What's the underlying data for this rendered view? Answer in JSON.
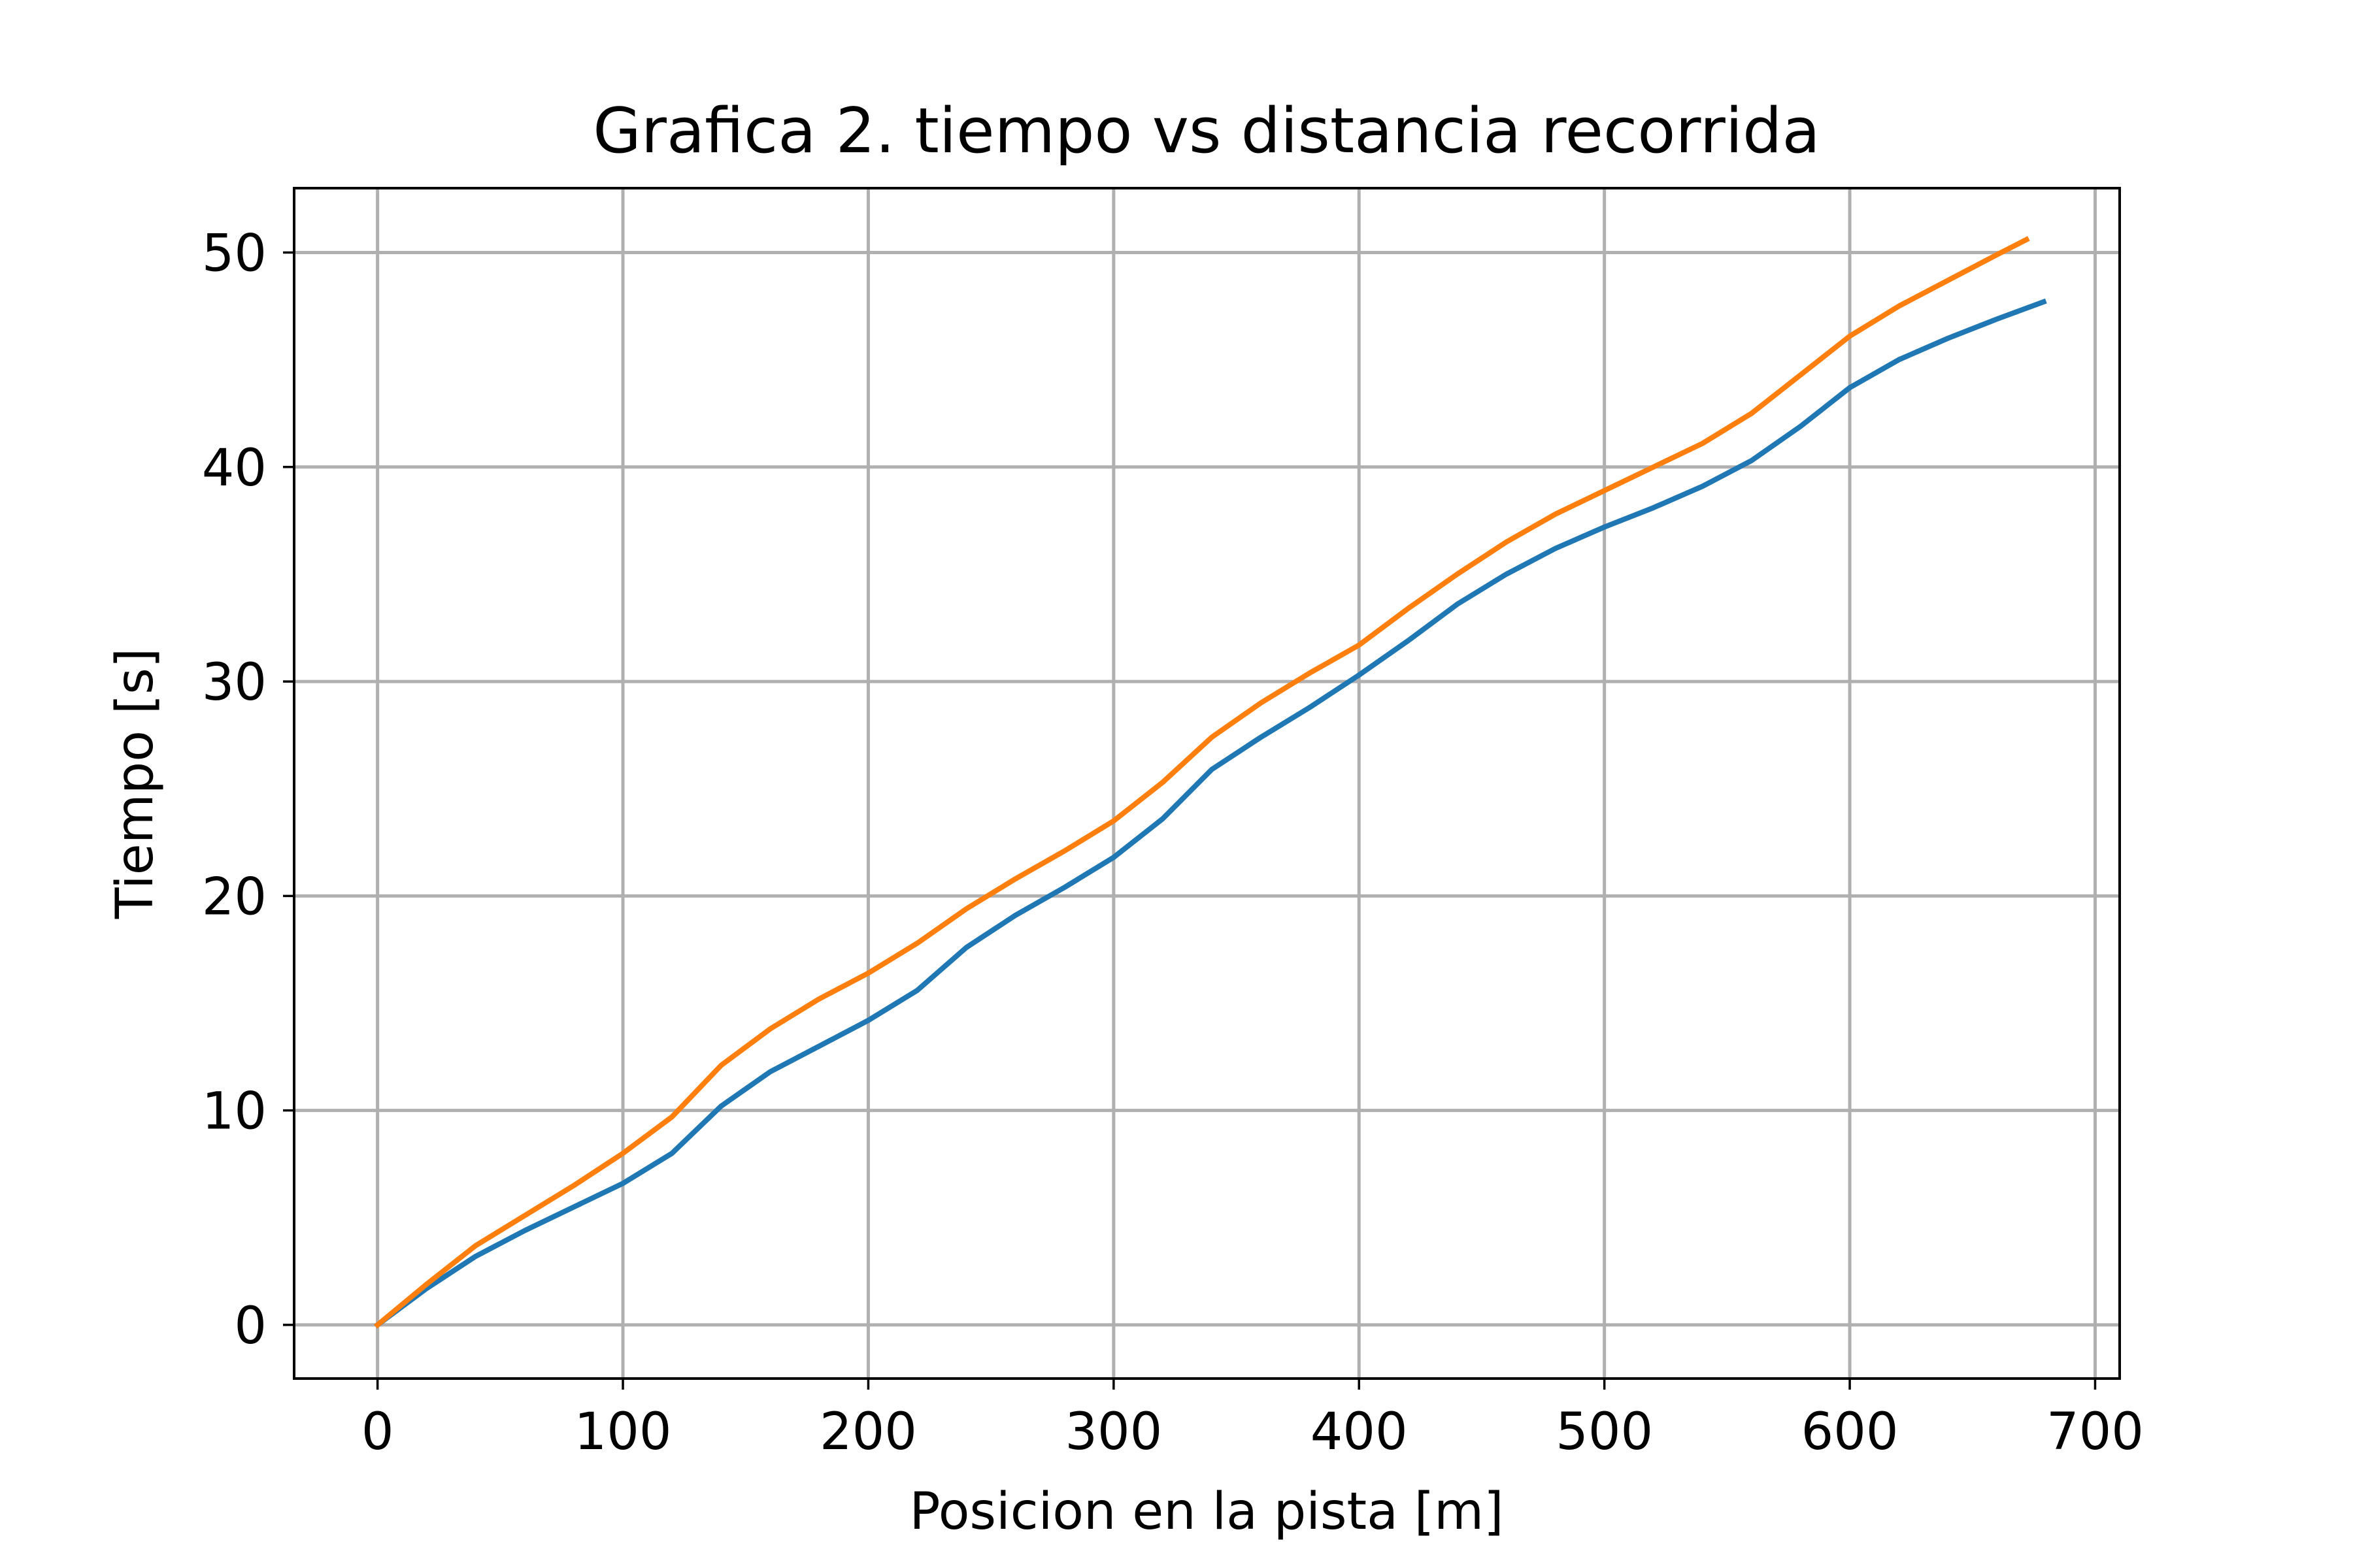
{
  "chart_data": {
    "type": "line",
    "title": "Grafica 2. tiempo vs distancia recorrida",
    "xlabel": "Posicion en la pista [m]",
    "ylabel": "Tiempo [s]",
    "xlim": [
      -34,
      710
    ],
    "ylim": [
      -2.5,
      53
    ],
    "xticks": [
      0,
      100,
      200,
      300,
      400,
      500,
      600,
      700
    ],
    "yticks": [
      0,
      10,
      20,
      30,
      40,
      50
    ],
    "grid": true,
    "series": [
      {
        "color": "#1f77b4",
        "points": [
          [
            0,
            0
          ],
          [
            20,
            1.7
          ],
          [
            40,
            3.2
          ],
          [
            60,
            4.4
          ],
          [
            80,
            5.5
          ],
          [
            100,
            6.6
          ],
          [
            120,
            8.0
          ],
          [
            140,
            10.2
          ],
          [
            160,
            11.8
          ],
          [
            180,
            13.0
          ],
          [
            200,
            14.2
          ],
          [
            220,
            15.6
          ],
          [
            240,
            17.6
          ],
          [
            260,
            19.1
          ],
          [
            280,
            20.4
          ],
          [
            300,
            21.8
          ],
          [
            320,
            23.6
          ],
          [
            340,
            25.9
          ],
          [
            360,
            27.4
          ],
          [
            380,
            28.8
          ],
          [
            400,
            30.3
          ],
          [
            420,
            31.9
          ],
          [
            440,
            33.6
          ],
          [
            460,
            35.0
          ],
          [
            480,
            36.2
          ],
          [
            500,
            37.2
          ],
          [
            520,
            38.1
          ],
          [
            540,
            39.1
          ],
          [
            560,
            40.3
          ],
          [
            580,
            41.9
          ],
          [
            600,
            43.7
          ],
          [
            620,
            45.0
          ],
          [
            640,
            46.0
          ],
          [
            660,
            46.9
          ],
          [
            679,
            47.7
          ]
        ]
      },
      {
        "color": "#ff7f0e",
        "points": [
          [
            0,
            0
          ],
          [
            20,
            1.9
          ],
          [
            40,
            3.7
          ],
          [
            60,
            5.1
          ],
          [
            80,
            6.5
          ],
          [
            100,
            8.0
          ],
          [
            120,
            9.7
          ],
          [
            140,
            12.1
          ],
          [
            160,
            13.8
          ],
          [
            180,
            15.2
          ],
          [
            200,
            16.4
          ],
          [
            220,
            17.8
          ],
          [
            240,
            19.4
          ],
          [
            260,
            20.8
          ],
          [
            280,
            22.1
          ],
          [
            300,
            23.5
          ],
          [
            320,
            25.3
          ],
          [
            340,
            27.4
          ],
          [
            360,
            29.0
          ],
          [
            380,
            30.4
          ],
          [
            400,
            31.7
          ],
          [
            420,
            33.4
          ],
          [
            440,
            35.0
          ],
          [
            460,
            36.5
          ],
          [
            480,
            37.8
          ],
          [
            500,
            38.9
          ],
          [
            520,
            40.0
          ],
          [
            540,
            41.1
          ],
          [
            560,
            42.5
          ],
          [
            580,
            44.3
          ],
          [
            600,
            46.1
          ],
          [
            620,
            47.5
          ],
          [
            640,
            48.7
          ],
          [
            660,
            49.9
          ],
          [
            672,
            50.6
          ]
        ]
      }
    ]
  }
}
